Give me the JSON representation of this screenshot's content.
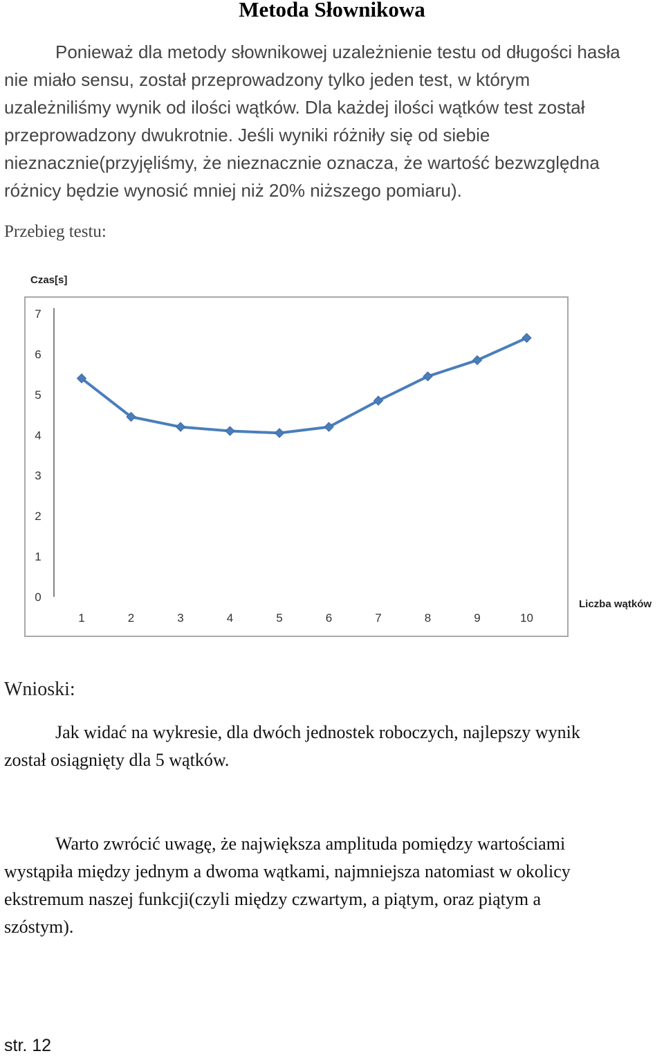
{
  "document": {
    "title": "Metoda Słownikowa",
    "intro_lines": [
      "Ponieważ dla metody słownikowej uzależnienie testu od długości hasła",
      "nie miało sensu, został przeprowadzony tylko jeden test, w którym",
      "uzależniliśmy wynik od ilości wątków. Dla każdej ilości wątków test został",
      "przeprowadzony dwukrotnie. Jeśli wyniki różniły się od siebie",
      "nieznacznie(przyjęliśmy, że nieznacznie oznacza, że wartość bezwzględna",
      "różnicy będzie wynosić mniej niż 20% niższego pomiaru)."
    ],
    "section_przebieg": "Przebieg testu:",
    "section_wnioski": "Wnioski:",
    "conclusion1_lines": [
      "Jak widać na wykresie, dla dwóch jednostek roboczych, najlepszy wynik",
      "został osiągnięty dla 5 wątków."
    ],
    "conclusion2_lines": [
      "Warto zwrócić uwagę, że największa amplituda pomiędzy wartościami",
      "wystąpiła między jednym a dwoma wątkami, najmniejsza natomiast w okolicy",
      "ekstremum naszej funkcji(czyli między czwartym, a piątym, oraz piątym a",
      "szóstym)."
    ],
    "page_number": "str. 12"
  },
  "chart_data": {
    "type": "line",
    "title": "",
    "ylabel": "Czas[s]",
    "xlabel": "Liczba wątków",
    "categories": [
      "1",
      "2",
      "3",
      "4",
      "5",
      "6",
      "7",
      "8",
      "9",
      "10"
    ],
    "series": [
      {
        "values": [
          5.4,
          4.45,
          4.2,
          4.1,
          4.05,
          4.2,
          4.85,
          5.45,
          5.85,
          6.4
        ]
      }
    ],
    "ylim": [
      0,
      7
    ],
    "yticks": [
      "0",
      "1",
      "2",
      "3",
      "4",
      "5",
      "6",
      "7"
    ],
    "grid": false,
    "legend": "none",
    "line_color": "#4a7ebb"
  }
}
